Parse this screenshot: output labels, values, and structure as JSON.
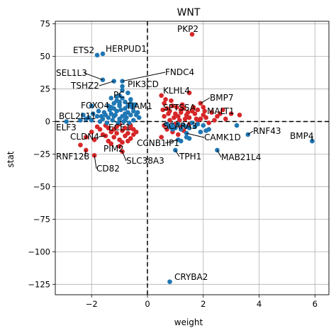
{
  "chart_data": {
    "type": "scatter",
    "title": "WNT",
    "xlabel": "weight",
    "ylabel": "stat",
    "xlim": [
      -3.3,
      6.5
    ],
    "ylim": [
      -133,
      77
    ],
    "xticks": [
      -2,
      0,
      2,
      4,
      6
    ],
    "xtick_labels": [
      "−2",
      "0",
      "2",
      "4",
      "6"
    ],
    "yticks": [
      -125,
      -100,
      -75,
      -50,
      -25,
      0,
      25,
      50,
      75
    ],
    "ytick_labels": [
      "−125",
      "−100",
      "−75",
      "−50",
      "−25",
      "0",
      "25",
      "50",
      "75"
    ],
    "grid": true,
    "reference_lines": {
      "x": 0,
      "y": 0,
      "style": "dashed"
    },
    "colors": {
      "positive": "#d62728",
      "negative": "#1f77b4"
    },
    "labeled_points": [
      {
        "name": "PKP2",
        "x": 1.6,
        "y": 67,
        "color": "#d62728"
      },
      {
        "name": "ETS2",
        "x": -1.8,
        "y": 51,
        "color": "#1f77b4"
      },
      {
        "name": "HERPUD1",
        "x": -1.6,
        "y": 52,
        "color": "#1f77b4"
      },
      {
        "name": "FNDC4",
        "x": -0.9,
        "y": 31,
        "color": "#1f77b4"
      },
      {
        "name": "SEL1L3",
        "x": -1.6,
        "y": 32,
        "color": "#1f77b4"
      },
      {
        "name": "TSHZ2",
        "x": -1.2,
        "y": 31,
        "color": "#1f77b4"
      },
      {
        "name": "PIK3CD",
        "x": -0.9,
        "y": 27,
        "color": "#1f77b4"
      },
      {
        "name": "KLHL4",
        "x": 1.5,
        "y": 22,
        "color": "#d62728"
      },
      {
        "name": "BMP7",
        "x": 1.9,
        "y": 14,
        "color": "#d62728"
      },
      {
        "name": "PC",
        "x": -1.3,
        "y": 18,
        "color": "#1f77b4"
      },
      {
        "name": "TIAM1",
        "x": -1.0,
        "y": 13,
        "color": "#1f77b4"
      },
      {
        "name": "FOXO4",
        "x": -2.0,
        "y": 12,
        "color": "#1f77b4"
      },
      {
        "name": "SPTSSA",
        "x": 1.2,
        "y": 9,
        "color": "#d62728"
      },
      {
        "name": "MALT1",
        "x": 2.0,
        "y": 11,
        "color": "#d62728"
      },
      {
        "name": "BCL2L11",
        "x": -2.3,
        "y": 5,
        "color": "#1f77b4"
      },
      {
        "name": "ELF3",
        "x": -2.9,
        "y": 0,
        "color": "#1f77b4"
      },
      {
        "name": "ECE1",
        "x": -0.6,
        "y": -5,
        "color": "#d62728"
      },
      {
        "name": "SCARA3",
        "x": 1.4,
        "y": -4,
        "color": "#1f77b4"
      },
      {
        "name": "RNF43",
        "x": 3.6,
        "y": -10,
        "color": "#1f77b4"
      },
      {
        "name": "BMP4",
        "x": 5.9,
        "y": -15,
        "color": "#1f77b4"
      },
      {
        "name": "CLDN4",
        "x": -1.5,
        "y": -11,
        "color": "#d62728"
      },
      {
        "name": "CAMK1D",
        "x": 1.4,
        "y": -9,
        "color": "#1f77b4"
      },
      {
        "name": "CCNB1IP1",
        "x": 1.1,
        "y": -14,
        "color": "#1f77b4"
      },
      {
        "name": "PIM2",
        "x": -1.0,
        "y": -19,
        "color": "#d62728"
      },
      {
        "name": "TPH1",
        "x": 1.0,
        "y": -22,
        "color": "#1f77b4"
      },
      {
        "name": "MAB21L4",
        "x": 2.5,
        "y": -22,
        "color": "#1f77b4"
      },
      {
        "name": "RNF128",
        "x": -2.2,
        "y": -22,
        "color": "#d62728"
      },
      {
        "name": "SLC38A3",
        "x": -0.9,
        "y": -23,
        "color": "#d62728"
      },
      {
        "name": "CD82",
        "x": -1.9,
        "y": -26,
        "color": "#d62728"
      },
      {
        "name": "CRYBA2",
        "x": 0.8,
        "y": -123,
        "color": "#1f77b4"
      }
    ],
    "annotations": [
      {
        "text": "PKP2"
      },
      {
        "text": "ETS2"
      },
      {
        "text": "HERPUD1"
      },
      {
        "text": "FNDC4"
      },
      {
        "text": "SEL1L3"
      },
      {
        "text": "TSHZ2"
      },
      {
        "text": "PIK3CD"
      },
      {
        "text": "KLHL4"
      },
      {
        "text": "BMP7"
      },
      {
        "text": "PC"
      },
      {
        "text": "TIAM1"
      },
      {
        "text": "FOXO4"
      },
      {
        "text": "SPTSSA"
      },
      {
        "text": "MALT1"
      },
      {
        "text": "BCL2L11"
      },
      {
        "text": "ELF3"
      },
      {
        "text": "ECE1"
      },
      {
        "text": "SCARA3"
      },
      {
        "text": "RNF43"
      },
      {
        "text": "BMP4"
      },
      {
        "text": "CLDN4"
      },
      {
        "text": "CAMK1D"
      },
      {
        "text": "CCNB1IP1"
      },
      {
        "text": "PIM2"
      },
      {
        "text": "TPH1"
      },
      {
        "text": "MAB21L4"
      },
      {
        "text": "RNF128"
      },
      {
        "text": "SLC38A3"
      },
      {
        "text": "CD82"
      },
      {
        "text": "CRYBA2"
      }
    ],
    "background_points": {
      "red": [
        [
          0.5,
          20
        ],
        [
          0.6,
          14
        ],
        [
          0.7,
          10
        ],
        [
          0.8,
          8
        ],
        [
          0.9,
          12
        ],
        [
          1.0,
          6
        ],
        [
          1.1,
          4
        ],
        [
          1.2,
          7
        ],
        [
          1.3,
          10
        ],
        [
          1.4,
          5
        ],
        [
          1.5,
          3
        ],
        [
          1.6,
          8
        ],
        [
          1.7,
          6
        ],
        [
          1.8,
          9
        ],
        [
          1.9,
          2
        ],
        [
          2.0,
          5
        ],
        [
          2.1,
          3
        ],
        [
          2.3,
          7
        ],
        [
          2.5,
          4
        ],
        [
          2.7,
          9
        ],
        [
          3.0,
          6
        ],
        [
          3.3,
          5
        ],
        [
          0.6,
          4
        ],
        [
          0.8,
          1
        ],
        [
          1.0,
          -2
        ],
        [
          1.2,
          -4
        ],
        [
          0.7,
          -6
        ],
        [
          0.9,
          -8
        ],
        [
          1.1,
          -10
        ],
        [
          1.3,
          -7
        ],
        [
          0.6,
          -3
        ],
        [
          1.5,
          -2
        ],
        [
          1.8,
          1
        ],
        [
          2.2,
          -1
        ],
        [
          0.55,
          9
        ],
        [
          0.65,
          17
        ],
        [
          0.75,
          6
        ],
        [
          0.85,
          16
        ],
        [
          0.95,
          3
        ],
        [
          1.05,
          11
        ],
        [
          1.15,
          1
        ],
        [
          1.25,
          13
        ],
        [
          1.35,
          2
        ],
        [
          1.45,
          7
        ],
        [
          1.65,
          11
        ],
        [
          1.75,
          2
        ],
        [
          2.05,
          8
        ],
        [
          2.4,
          1
        ],
        [
          2.6,
          6
        ],
        [
          2.8,
          2
        ],
        [
          0.5,
          -12
        ],
        [
          -1.0,
          -2
        ],
        [
          -1.1,
          -4
        ],
        [
          -1.2,
          -6
        ],
        [
          -1.3,
          -8
        ],
        [
          -1.4,
          -5
        ],
        [
          -1.5,
          -3
        ],
        [
          -0.9,
          -7
        ],
        [
          -0.8,
          -5
        ],
        [
          -0.7,
          -9
        ],
        [
          -0.6,
          -3
        ],
        [
          -0.5,
          -6
        ],
        [
          -0.4,
          -8
        ],
        [
          -1.6,
          -10
        ],
        [
          -1.7,
          -6
        ],
        [
          -1.8,
          -4
        ],
        [
          -1.2,
          -12
        ],
        [
          -1.0,
          -14
        ],
        [
          -0.8,
          -11
        ],
        [
          -0.6,
          -13
        ],
        [
          -0.9,
          -16
        ],
        [
          -1.4,
          -15
        ],
        [
          -2.0,
          -8
        ],
        [
          -2.2,
          -12
        ],
        [
          -2.4,
          -18
        ],
        [
          -1.1,
          -9
        ],
        [
          -0.7,
          -15
        ],
        [
          -1.3,
          -17
        ],
        [
          -0.5,
          -10
        ],
        [
          -1.9,
          -14
        ]
      ],
      "blue": [
        [
          -1.0,
          2
        ],
        [
          -0.9,
          4
        ],
        [
          -0.8,
          6
        ],
        [
          -1.1,
          8
        ],
        [
          -1.2,
          10
        ],
        [
          -0.7,
          12
        ],
        [
          -0.6,
          14
        ],
        [
          -1.3,
          6
        ],
        [
          -1.4,
          3
        ],
        [
          -1.5,
          5
        ],
        [
          -1.6,
          2
        ],
        [
          -1.7,
          0
        ],
        [
          -1.8,
          4
        ],
        [
          -2.0,
          1
        ],
        [
          -2.1,
          3
        ],
        [
          -0.5,
          8
        ],
        [
          -0.4,
          5
        ],
        [
          -0.3,
          3
        ],
        [
          -0.8,
          15
        ],
        [
          -0.9,
          18
        ],
        [
          -1.0,
          20
        ],
        [
          -1.1,
          16
        ],
        [
          -1.2,
          14
        ],
        [
          -0.7,
          22
        ],
        [
          -0.6,
          17
        ],
        [
          -1.3,
          11
        ],
        [
          -0.5,
          1
        ],
        [
          -0.85,
          0
        ],
        [
          -1.05,
          -1
        ],
        [
          -1.25,
          1
        ],
        [
          -1.45,
          -1
        ],
        [
          -0.65,
          -1
        ],
        [
          -1.15,
          5
        ],
        [
          -0.95,
          9
        ],
        [
          -0.75,
          3
        ],
        [
          -0.55,
          11
        ],
        [
          -1.35,
          9
        ],
        [
          -1.55,
          7
        ],
        [
          -1.65,
          4
        ],
        [
          -1.75,
          8
        ],
        [
          -1.95,
          6
        ],
        [
          -2.2,
          2
        ],
        [
          -2.4,
          1
        ],
        [
          -0.45,
          13
        ],
        [
          -0.35,
          7
        ],
        [
          -0.9,
          24
        ],
        [
          -1.1,
          19
        ],
        [
          -0.8,
          10
        ],
        [
          -1.0,
          12
        ],
        [
          -0.7,
          7
        ],
        [
          -1.2,
          4
        ],
        [
          -0.6,
          5
        ],
        [
          -1.4,
          12
        ],
        [
          -1.0,
          15
        ],
        [
          -0.8,
          1
        ],
        [
          0.7,
          -2
        ],
        [
          0.8,
          -4
        ],
        [
          0.9,
          -3
        ],
        [
          1.0,
          -5
        ],
        [
          1.1,
          -2
        ],
        [
          1.2,
          -6
        ],
        [
          1.3,
          -3
        ],
        [
          1.5,
          -5
        ],
        [
          1.6,
          -1
        ],
        [
          1.7,
          -4
        ],
        [
          1.8,
          -2
        ],
        [
          2.0,
          -3
        ],
        [
          2.2,
          -6
        ],
        [
          1.9,
          -8
        ],
        [
          2.1,
          -7
        ],
        [
          1.4,
          -12
        ],
        [
          1.2,
          -15
        ],
        [
          1.5,
          -13
        ],
        [
          0.9,
          -6
        ],
        [
          3.2,
          -3
        ]
      ]
    }
  }
}
